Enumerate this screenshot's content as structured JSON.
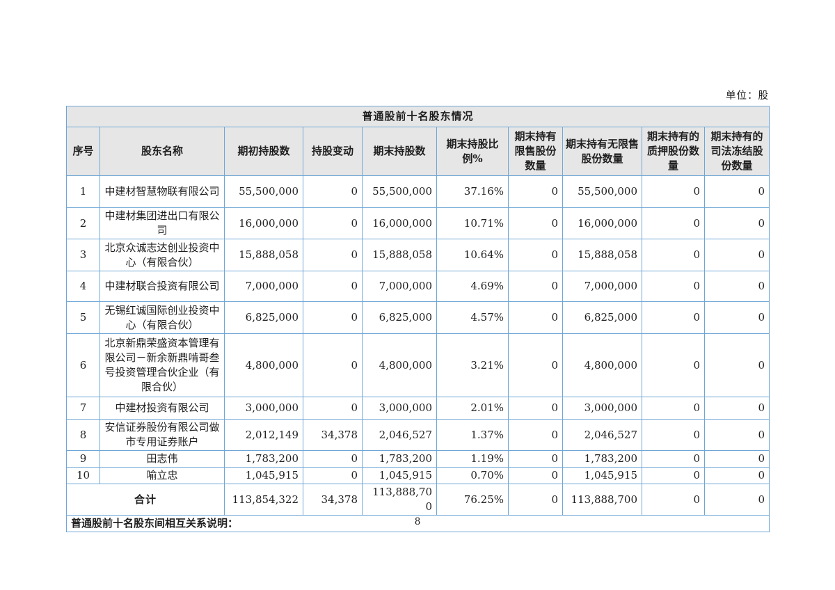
{
  "page": {
    "unit_label": "单位：股",
    "page_number": "8"
  },
  "colors": {
    "border": "#6fa6d6",
    "header_bg": "#e6e6e6",
    "text": "#1f1f1f"
  },
  "table": {
    "title": "普通股前十名股东情况",
    "columns": [
      "序号",
      "股东名称",
      "期初持股数",
      "持股变动",
      "期末持股数",
      "期末持股比例%",
      "期末持有限售股份数量",
      "期末持有无限售股份数量",
      "期末持有的质押股份数量",
      "期末持有的司法冻结股份数量"
    ],
    "rows": [
      {
        "no": "1",
        "name": "中建材智慧物联有限公司",
        "begin": "55,500,000",
        "change": "0",
        "end": "55,500,000",
        "ratio": "37.16%",
        "restricted": "0",
        "unrestricted": "55,500,000",
        "pledged": "0",
        "frozen": "0"
      },
      {
        "no": "2",
        "name": "中建材集团进出口有限公司",
        "begin": "16,000,000",
        "change": "0",
        "end": "16,000,000",
        "ratio": "10.71%",
        "restricted": "0",
        "unrestricted": "16,000,000",
        "pledged": "0",
        "frozen": "0"
      },
      {
        "no": "3",
        "name": "北京众诚志达创业投资中心（有限合伙）",
        "begin": "15,888,058",
        "change": "0",
        "end": "15,888,058",
        "ratio": "10.64%",
        "restricted": "0",
        "unrestricted": "15,888,058",
        "pledged": "0",
        "frozen": "0"
      },
      {
        "no": "4",
        "name": "中建材联合投资有限公司",
        "begin": "7,000,000",
        "change": "0",
        "end": "7,000,000",
        "ratio": "4.69%",
        "restricted": "0",
        "unrestricted": "7,000,000",
        "pledged": "0",
        "frozen": "0"
      },
      {
        "no": "5",
        "name": "无锡红诚国际创业投资中心（有限合伙）",
        "begin": "6,825,000",
        "change": "0",
        "end": "6,825,000",
        "ratio": "4.57%",
        "restricted": "0",
        "unrestricted": "6,825,000",
        "pledged": "0",
        "frozen": "0"
      },
      {
        "no": "6",
        "name": "北京新鼎荣盛资本管理有限公司－新余新鼎啃哥叁号投资管理合伙企业（有限合伙）",
        "begin": "4,800,000",
        "change": "0",
        "end": "4,800,000",
        "ratio": "3.21%",
        "restricted": "0",
        "unrestricted": "4,800,000",
        "pledged": "0",
        "frozen": "0"
      },
      {
        "no": "7",
        "name": "中建材投资有限公司",
        "begin": "3,000,000",
        "change": "0",
        "end": "3,000,000",
        "ratio": "2.01%",
        "restricted": "0",
        "unrestricted": "3,000,000",
        "pledged": "0",
        "frozen": "0"
      },
      {
        "no": "8",
        "name": "安信证券股份有限公司做市专用证券账户",
        "begin": "2,012,149",
        "change": "34,378",
        "end": "2,046,527",
        "ratio": "1.37%",
        "restricted": "0",
        "unrestricted": "2,046,527",
        "pledged": "0",
        "frozen": "0"
      },
      {
        "no": "9",
        "name": "田志伟",
        "begin": "1,783,200",
        "change": "0",
        "end": "1,783,200",
        "ratio": "1.19%",
        "restricted": "0",
        "unrestricted": "1,783,200",
        "pledged": "0",
        "frozen": "0"
      },
      {
        "no": "10",
        "name": "喻立忠",
        "begin": "1,045,915",
        "change": "0",
        "end": "1,045,915",
        "ratio": "0.70%",
        "restricted": "0",
        "unrestricted": "1,045,915",
        "pledged": "0",
        "frozen": "0"
      }
    ],
    "total": {
      "label": "合计",
      "begin": "113,854,322",
      "change": "34,378",
      "end": "113,888,700",
      "ratio": "76.25%",
      "restricted": "0",
      "unrestricted": "113,888,700",
      "pledged": "0",
      "frozen": "0"
    },
    "note": "普通股前十名股东间相互关系说明："
  }
}
